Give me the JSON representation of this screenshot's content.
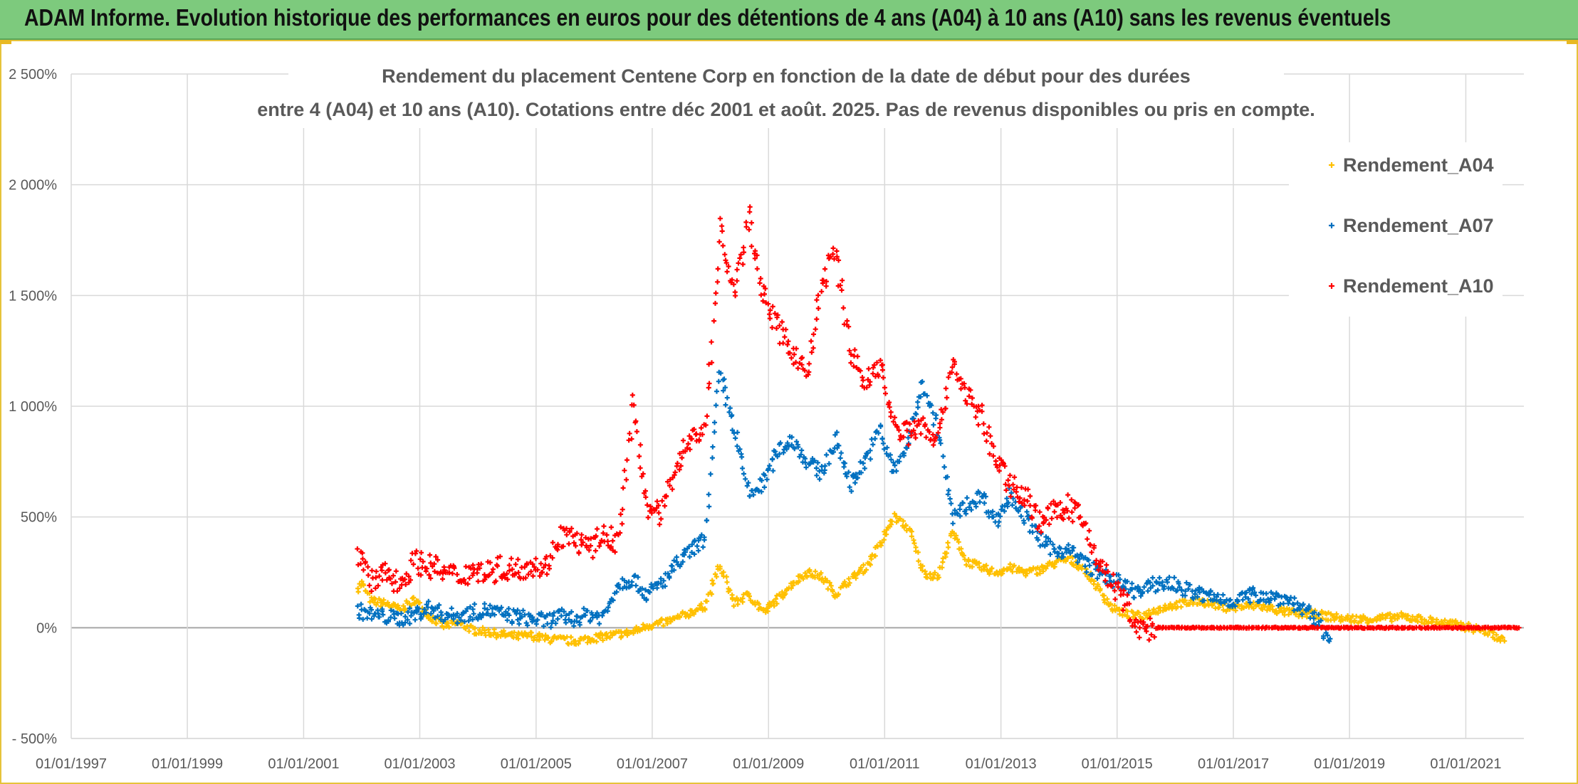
{
  "banner": {
    "text": "ADAM Informe. Evolution historique des performances en euros pour des détentions de 4 ans (A04) à 10 ans (A10) sans les revenus éventuels"
  },
  "colors": {
    "banner_bg": "#7dca7d",
    "A04": "#ffc000",
    "A07": "#0070c0",
    "A10": "#ff0000",
    "grid": "#d9d9d9",
    "baseline": "#a6a6a6"
  },
  "chart_data": {
    "type": "scatter",
    "marker": "plus",
    "title_lines": [
      "Rendement du placement Centene Corp en fonction de la date de début pour des durées",
      "entre 4 (A04) et 10 ans (A10). Cotations entre déc 2001 et août. 2025. Pas de revenus disponibles ou pris en compte."
    ],
    "y_ticks": [
      {
        "v": 2500,
        "label": "2 500%"
      },
      {
        "v": 2000,
        "label": "2 000%"
      },
      {
        "v": 1500,
        "label": "1 500%"
      },
      {
        "v": 1000,
        "label": "1 000%"
      },
      {
        "v": 500,
        "label": "500%"
      },
      {
        "v": 0,
        "label": "0%"
      },
      {
        "v": -500,
        "label": "- 500%"
      }
    ],
    "x_ticks": [
      "01/01/1997",
      "01/01/1999",
      "01/01/2001",
      "01/01/2003",
      "01/01/2005",
      "01/01/2007",
      "01/01/2009",
      "01/01/2011",
      "01/01/2013",
      "01/01/2015",
      "01/01/2017",
      "01/01/2019",
      "01/01/2021"
    ],
    "xlim": [
      "1997-01-01",
      "2022-01-01"
    ],
    "ylim": [
      -500,
      2500
    ],
    "grid": true,
    "legend_position": "top-right",
    "series": [
      {
        "name": "Rendement_A04",
        "color": "#ffc000",
        "points": [
          [
            "2001-12-05",
            180
          ],
          [
            "2002-01",
            200
          ],
          [
            "2002-03",
            120
          ],
          [
            "2002-06",
            110
          ],
          [
            "2002-09",
            80
          ],
          [
            "2002-12",
            130
          ],
          [
            "2003-03",
            50
          ],
          [
            "2003-06",
            10
          ],
          [
            "2003-09",
            20
          ],
          [
            "2003-12",
            -10
          ],
          [
            "2004-03",
            -20
          ],
          [
            "2004-06",
            -30
          ],
          [
            "2004-09",
            -40
          ],
          [
            "2004-12",
            -35
          ],
          [
            "2005-03",
            -50
          ],
          [
            "2005-06",
            -55
          ],
          [
            "2005-09",
            -60
          ],
          [
            "2005-12",
            -50
          ],
          [
            "2006-03",
            -40
          ],
          [
            "2006-06",
            -30
          ],
          [
            "2006-09",
            -20
          ],
          [
            "2006-12",
            10
          ],
          [
            "2007-03",
            20
          ],
          [
            "2007-06",
            40
          ],
          [
            "2007-09",
            70
          ],
          [
            "2007-12",
            100
          ],
          [
            "2008-03",
            280
          ],
          [
            "2008-06",
            110
          ],
          [
            "2008-09",
            150
          ],
          [
            "2008-12",
            70
          ],
          [
            "2009-03",
            130
          ],
          [
            "2009-06",
            200
          ],
          [
            "2009-09",
            250
          ],
          [
            "2009-12",
            230
          ],
          [
            "2010-03",
            150
          ],
          [
            "2010-06",
            220
          ],
          [
            "2010-09",
            270
          ],
          [
            "2010-12",
            370
          ],
          [
            "2011-03",
            500
          ],
          [
            "2011-06",
            450
          ],
          [
            "2011-09",
            250
          ],
          [
            "2011-12",
            230
          ],
          [
            "2012-03",
            430
          ],
          [
            "2012-06",
            300
          ],
          [
            "2012-09",
            270
          ],
          [
            "2012-12",
            250
          ],
          [
            "2013-03",
            270
          ],
          [
            "2013-06",
            250
          ],
          [
            "2013-09",
            260
          ],
          [
            "2013-12",
            290
          ],
          [
            "2014-03",
            310
          ],
          [
            "2014-06",
            270
          ],
          [
            "2014-09",
            180
          ],
          [
            "2014-12",
            90
          ],
          [
            "2015-03",
            60
          ],
          [
            "2015-06",
            50
          ],
          [
            "2015-09",
            80
          ],
          [
            "2015-12",
            100
          ],
          [
            "2016-06",
            120
          ],
          [
            "2016-12",
            90
          ],
          [
            "2017-06",
            100
          ],
          [
            "2017-12",
            70
          ],
          [
            "2018-06",
            60
          ],
          [
            "2018-12",
            40
          ],
          [
            "2019-06",
            40
          ],
          [
            "2019-12",
            50
          ],
          [
            "2020-06",
            30
          ],
          [
            "2020-12",
            10
          ],
          [
            "2021-06",
            -20
          ],
          [
            "2021-09",
            -60
          ]
        ]
      },
      {
        "name": "Rendement_A07",
        "color": "#0070c0",
        "points": [
          [
            "2001-12-05",
            80
          ],
          [
            "2002-03",
            60
          ],
          [
            "2002-06",
            50
          ],
          [
            "2002-09",
            40
          ],
          [
            "2002-12",
            60
          ],
          [
            "2003-03",
            90
          ],
          [
            "2003-06",
            60
          ],
          [
            "2003-09",
            50
          ],
          [
            "2003-12",
            70
          ],
          [
            "2004-03",
            80
          ],
          [
            "2004-06",
            60
          ],
          [
            "2004-09",
            50
          ],
          [
            "2004-12",
            40
          ],
          [
            "2005-03",
            30
          ],
          [
            "2005-06",
            50
          ],
          [
            "2005-09",
            40
          ],
          [
            "2005-12",
            60
          ],
          [
            "2006-03",
            50
          ],
          [
            "2006-06",
            200
          ],
          [
            "2006-09",
            220
          ],
          [
            "2006-12",
            150
          ],
          [
            "2007-03",
            200
          ],
          [
            "2007-06",
            280
          ],
          [
            "2007-09",
            350
          ],
          [
            "2007-12",
            400
          ],
          [
            "2008-03",
            1150
          ],
          [
            "2008-06",
            900
          ],
          [
            "2008-09",
            600
          ],
          [
            "2008-12",
            650
          ],
          [
            "2009-03",
            800
          ],
          [
            "2009-06",
            850
          ],
          [
            "2009-09",
            750
          ],
          [
            "2009-12",
            700
          ],
          [
            "2010-03",
            850
          ],
          [
            "2010-06",
            650
          ],
          [
            "2010-09",
            750
          ],
          [
            "2010-12",
            900
          ],
          [
            "2011-03",
            700
          ],
          [
            "2011-06",
            850
          ],
          [
            "2011-09",
            1100
          ],
          [
            "2011-12",
            900
          ],
          [
            "2012-03",
            500
          ],
          [
            "2012-06",
            550
          ],
          [
            "2012-09",
            600
          ],
          [
            "2012-12",
            480
          ],
          [
            "2013-03",
            600
          ],
          [
            "2013-06",
            500
          ],
          [
            "2013-09",
            400
          ],
          [
            "2013-12",
            350
          ],
          [
            "2014-03",
            350
          ],
          [
            "2014-06",
            300
          ],
          [
            "2014-09",
            250
          ],
          [
            "2014-12",
            220
          ],
          [
            "2015-03",
            180
          ],
          [
            "2015-06",
            160
          ],
          [
            "2015-09",
            200
          ],
          [
            "2015-12",
            200
          ],
          [
            "2016-06",
            150
          ],
          [
            "2016-12",
            120
          ],
          [
            "2017-06",
            150
          ],
          [
            "2017-12",
            130
          ],
          [
            "2018-03",
            90
          ],
          [
            "2018-06",
            40
          ],
          [
            "2018-09",
            -50
          ]
        ]
      },
      {
        "name": "Rendement_A10",
        "color": "#ff0000",
        "points": [
          [
            "2001-12-05",
            350
          ],
          [
            "2002-03",
            200
          ],
          [
            "2002-06",
            250
          ],
          [
            "2002-09",
            200
          ],
          [
            "2002-12",
            300
          ],
          [
            "2003-03",
            280
          ],
          [
            "2003-06",
            250
          ],
          [
            "2003-09",
            230
          ],
          [
            "2003-12",
            260
          ],
          [
            "2004-03",
            250
          ],
          [
            "2004-06",
            270
          ],
          [
            "2004-09",
            260
          ],
          [
            "2004-12",
            290
          ],
          [
            "2005-03",
            270
          ],
          [
            "2005-06",
            420
          ],
          [
            "2005-09",
            400
          ],
          [
            "2005-12",
            350
          ],
          [
            "2006-03",
            420
          ],
          [
            "2006-06",
            380
          ],
          [
            "2006-09",
            1000
          ],
          [
            "2006-12",
            550
          ],
          [
            "2007-03",
            500
          ],
          [
            "2007-06",
            750
          ],
          [
            "2007-09",
            850
          ],
          [
            "2007-12",
            900
          ],
          [
            "2008-03",
            1800
          ],
          [
            "2008-06",
            1500
          ],
          [
            "2008-09",
            1850
          ],
          [
            "2008-12",
            1500
          ],
          [
            "2009-03",
            1350
          ],
          [
            "2009-06",
            1250
          ],
          [
            "2009-09",
            1150
          ],
          [
            "2009-12",
            1550
          ],
          [
            "2010-03",
            1700
          ],
          [
            "2010-06",
            1250
          ],
          [
            "2010-09",
            1100
          ],
          [
            "2010-12",
            1200
          ],
          [
            "2011-03",
            900
          ],
          [
            "2011-06",
            880
          ],
          [
            "2011-09",
            920
          ],
          [
            "2011-12",
            850
          ],
          [
            "2012-03",
            1200
          ],
          [
            "2012-06",
            1050
          ],
          [
            "2012-09",
            950
          ],
          [
            "2012-12",
            750
          ],
          [
            "2013-03",
            650
          ],
          [
            "2013-06",
            600
          ],
          [
            "2013-09",
            480
          ],
          [
            "2013-12",
            520
          ],
          [
            "2014-03",
            550
          ],
          [
            "2014-06",
            480
          ],
          [
            "2014-09",
            300
          ],
          [
            "2014-12",
            200
          ],
          [
            "2015-03",
            100
          ],
          [
            "2015-06",
            -20
          ],
          [
            "2015-09",
            0
          ],
          [
            "2016-06",
            0
          ],
          [
            "2017-06",
            0
          ],
          [
            "2018-06",
            0
          ],
          [
            "2019-06",
            0
          ],
          [
            "2020-06",
            0
          ],
          [
            "2021-06",
            0
          ],
          [
            "2021-12",
            0
          ]
        ]
      }
    ]
  }
}
